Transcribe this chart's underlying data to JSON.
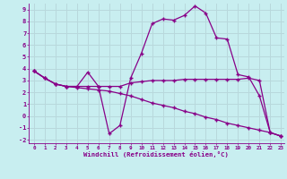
{
  "xlabel": "Windchill (Refroidissement éolien,°C)",
  "bg_color": "#c8eef0",
  "grid_color": "#b8d8dc",
  "line_color": "#880088",
  "series1": [
    [
      0,
      3.8
    ],
    [
      1,
      3.2
    ],
    [
      2,
      2.7
    ],
    [
      3,
      2.5
    ],
    [
      4,
      2.5
    ],
    [
      5,
      3.7
    ],
    [
      6,
      2.5
    ],
    [
      7,
      -1.5
    ],
    [
      8,
      -0.8
    ],
    [
      9,
      3.2
    ],
    [
      10,
      5.3
    ],
    [
      11,
      7.8
    ],
    [
      12,
      8.2
    ],
    [
      13,
      8.1
    ],
    [
      14,
      8.5
    ],
    [
      15,
      9.3
    ],
    [
      16,
      8.7
    ],
    [
      17,
      6.6
    ],
    [
      18,
      6.5
    ],
    [
      19,
      3.5
    ],
    [
      20,
      3.3
    ],
    [
      21,
      1.7
    ],
    [
      22,
      -1.4
    ],
    [
      23,
      -1.7
    ]
  ],
  "series2": [
    [
      0,
      3.8
    ],
    [
      1,
      3.2
    ],
    [
      2,
      2.7
    ],
    [
      3,
      2.5
    ],
    [
      4,
      2.5
    ],
    [
      5,
      2.5
    ],
    [
      6,
      2.5
    ],
    [
      7,
      2.5
    ],
    [
      8,
      2.5
    ],
    [
      9,
      2.8
    ],
    [
      10,
      2.9
    ],
    [
      11,
      3.0
    ],
    [
      12,
      3.0
    ],
    [
      13,
      3.0
    ],
    [
      14,
      3.1
    ],
    [
      15,
      3.1
    ],
    [
      16,
      3.1
    ],
    [
      17,
      3.1
    ],
    [
      18,
      3.1
    ],
    [
      19,
      3.1
    ],
    [
      20,
      3.2
    ],
    [
      21,
      3.0
    ],
    [
      22,
      -1.4
    ],
    [
      23,
      -1.7
    ]
  ],
  "series3": [
    [
      0,
      3.8
    ],
    [
      1,
      3.2
    ],
    [
      2,
      2.7
    ],
    [
      3,
      2.5
    ],
    [
      4,
      2.4
    ],
    [
      5,
      2.3
    ],
    [
      6,
      2.2
    ],
    [
      7,
      2.1
    ],
    [
      8,
      1.9
    ],
    [
      9,
      1.7
    ],
    [
      10,
      1.4
    ],
    [
      11,
      1.1
    ],
    [
      12,
      0.9
    ],
    [
      13,
      0.7
    ],
    [
      14,
      0.4
    ],
    [
      15,
      0.2
    ],
    [
      16,
      -0.1
    ],
    [
      17,
      -0.3
    ],
    [
      18,
      -0.6
    ],
    [
      19,
      -0.8
    ],
    [
      20,
      -1.0
    ],
    [
      21,
      -1.2
    ],
    [
      22,
      -1.4
    ],
    [
      23,
      -1.7
    ]
  ],
  "xlim": [
    -0.5,
    23.3
  ],
  "ylim": [
    -2.3,
    9.5
  ],
  "yticks": [
    -2,
    -1,
    0,
    1,
    2,
    3,
    4,
    5,
    6,
    7,
    8,
    9
  ],
  "xticks": [
    0,
    1,
    2,
    3,
    4,
    5,
    6,
    7,
    8,
    9,
    10,
    11,
    12,
    13,
    14,
    15,
    16,
    17,
    18,
    19,
    20,
    21,
    22,
    23
  ]
}
